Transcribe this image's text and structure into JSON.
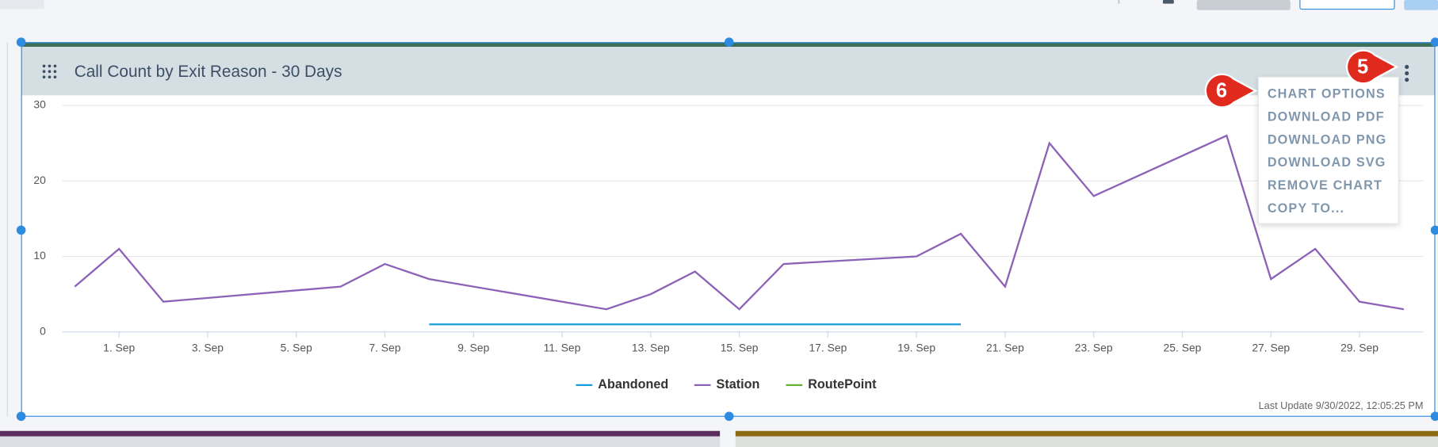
{
  "header": {
    "title": "Call Count by Exit Reason - 30 Days"
  },
  "menu": {
    "items": [
      "CHART OPTIONS",
      "DOWNLOAD PDF",
      "DOWNLOAD PNG",
      "DOWNLOAD SVG",
      "REMOVE CHART",
      "COPY TO..."
    ]
  },
  "callouts": [
    "5",
    "6"
  ],
  "footer": {
    "last_update": "Last Update 9/30/2022, 12:05:25 PM"
  },
  "chart_data": {
    "type": "line",
    "series": [
      {
        "name": "Abandoned",
        "color": "#1a9bdc",
        "x": [
          8,
          9,
          10,
          11,
          12,
          13,
          14,
          15,
          16,
          17,
          18,
          19,
          20
        ],
        "values": [
          1,
          1,
          1,
          1,
          1,
          1,
          1,
          1,
          1,
          1,
          1,
          1,
          1
        ]
      },
      {
        "name": "Station",
        "color": "#8c62b8",
        "x": [
          0,
          1,
          2,
          6,
          7,
          8,
          12,
          13,
          14,
          15,
          16,
          19,
          20,
          21,
          22,
          23,
          26,
          27,
          28,
          29,
          30
        ],
        "values": [
          6,
          11,
          4,
          6,
          9,
          7,
          3,
          5,
          8,
          3,
          9,
          10,
          13,
          6,
          25,
          18,
          26,
          7,
          11,
          4,
          3
        ]
      },
      {
        "name": "RoutePoint",
        "color": "#66b032",
        "x": [],
        "values": []
      }
    ],
    "xlim": [
      -0.28,
      30.44
    ],
    "xticks": [
      {
        "value": 1,
        "label": "1. Sep"
      },
      {
        "value": 3,
        "label": "3. Sep"
      },
      {
        "value": 5,
        "label": "5. Sep"
      },
      {
        "value": 7,
        "label": "7. Sep"
      },
      {
        "value": 9,
        "label": "9. Sep"
      },
      {
        "value": 11,
        "label": "11. Sep"
      },
      {
        "value": 13,
        "label": "13. Sep"
      },
      {
        "value": 15,
        "label": "15. Sep"
      },
      {
        "value": 17,
        "label": "17. Sep"
      },
      {
        "value": 19,
        "label": "19. Sep"
      },
      {
        "value": 21,
        "label": "21. Sep"
      },
      {
        "value": 23,
        "label": "23. Sep"
      },
      {
        "value": 25,
        "label": "25. Sep"
      },
      {
        "value": 27,
        "label": "27. Sep"
      },
      {
        "value": 29,
        "label": "29. Sep"
      }
    ],
    "ylim": [
      0,
      30
    ],
    "yticks": [
      0,
      10,
      20,
      30
    ],
    "grid": true
  }
}
